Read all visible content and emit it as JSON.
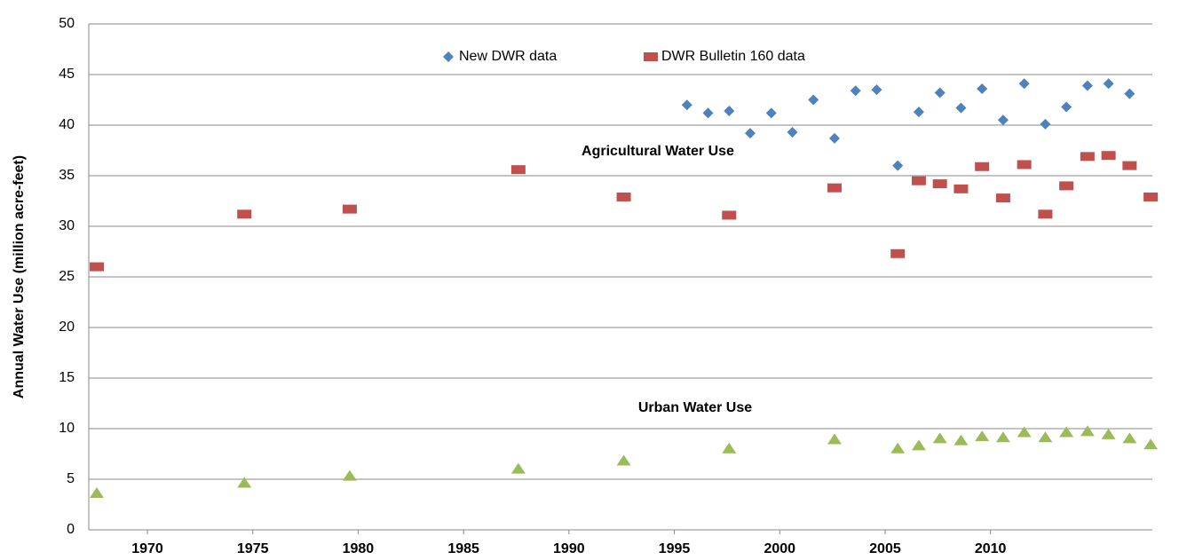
{
  "chart_data": {
    "type": "scatter",
    "y_label": "Annual Water Use (million acre-feet)",
    "annotations": [
      "Agricultural Water Use",
      "Urban Water Use"
    ],
    "xlim": [
      1967.22,
      2017.68
    ],
    "xticks": [
      1970,
      1975,
      1980,
      1985,
      1990,
      1995,
      2000,
      2005,
      2010
    ],
    "ylim": [
      0,
      50
    ],
    "yticks": [
      0,
      5,
      10,
      15,
      20,
      25,
      30,
      35,
      40,
      45,
      50
    ],
    "grid": true,
    "legend": "top",
    "series": [
      {
        "name": "New DWR data",
        "color": "#4f81bd",
        "marker": "diamond",
        "x": [
          1995.6,
          1996.6,
          1997.6,
          1998.6,
          1999.6,
          2000.6,
          2001.6,
          2002.6,
          2003.6,
          2004.6,
          2005.6,
          2006.6,
          2007.6,
          2008.6,
          2009.6,
          2010.6,
          2011.6,
          2012.6,
          2013.6,
          2014.6,
          2015.6,
          2016.6
        ],
        "values": [
          42.0,
          41.2,
          41.4,
          39.2,
          41.2,
          39.3,
          42.5,
          38.7,
          43.4,
          43.5,
          36.0,
          41.3,
          43.2,
          41.7,
          43.6,
          40.5,
          44.1,
          40.1,
          41.8,
          43.9,
          44.1,
          43.1
        ]
      },
      {
        "name": "DWR Bulletin 160 data",
        "color": "#c0504d",
        "marker": "square",
        "x": [
          1967.6,
          1974.6,
          1979.6,
          1987.6,
          1992.6,
          1997.6,
          2002.6,
          2005.6,
          2006.6,
          2007.6,
          2008.6,
          2009.6,
          2010.6,
          2011.6,
          2012.6,
          2013.6,
          2014.6,
          2015.6,
          2016.6,
          2017.6
        ],
        "values": [
          26.0,
          31.2,
          31.7,
          35.6,
          32.9,
          31.1,
          33.8,
          27.3,
          34.5,
          34.2,
          33.7,
          35.9,
          32.8,
          36.1,
          31.2,
          34.0,
          36.9,
          37.0,
          36.0,
          32.9
        ]
      },
      {
        "color": "#9bbb59",
        "marker": "triangle",
        "x": [
          1967.6,
          1974.6,
          1979.6,
          1987.6,
          1992.6,
          1997.6,
          2002.6,
          2005.6,
          2006.6,
          2007.6,
          2008.6,
          2009.6,
          2010.6,
          2011.6,
          2012.6,
          2013.6,
          2014.6,
          2015.6,
          2016.6,
          2017.6
        ],
        "values": [
          3.6,
          4.6,
          5.3,
          6.0,
          6.8,
          8.0,
          8.9,
          8.0,
          8.3,
          9.0,
          8.8,
          9.2,
          9.1,
          9.6,
          9.1,
          9.6,
          9.7,
          9.4,
          9.0,
          8.4
        ]
      }
    ]
  }
}
